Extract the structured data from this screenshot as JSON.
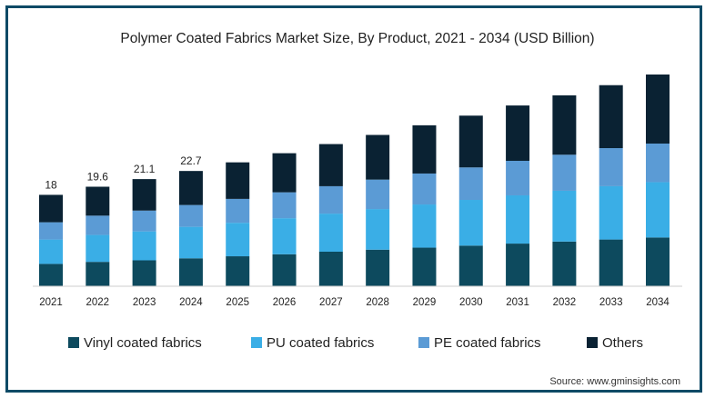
{
  "chart_data": {
    "type": "bar",
    "stacked": true,
    "title": "Polymer Coated Fabrics Market Size, By Product, 2021 - 2034 (USD Billion)",
    "xlabel": "",
    "ylabel": "",
    "grid": false,
    "legend_position": "bottom",
    "categories": [
      "2021",
      "2022",
      "2023",
      "2024",
      "2025",
      "2026",
      "2027",
      "2028",
      "2029",
      "2030",
      "2031",
      "2032",
      "2033",
      "2034"
    ],
    "totals": [
      18,
      19.6,
      21.1,
      22.7,
      24.4,
      26.2,
      28.0,
      29.8,
      31.7,
      33.6,
      35.6,
      37.6,
      39.6,
      41.7
    ],
    "total_labels": [
      "18",
      "19.6",
      "21.1",
      "22.7",
      "",
      "",
      "",
      "",
      "",
      "",
      "",
      "",
      "",
      ""
    ],
    "series": [
      {
        "name": "Vinyl coated fabrics",
        "color": "#0d4a5e",
        "values": [
          4.4,
          4.8,
          5.1,
          5.5,
          5.9,
          6.3,
          6.8,
          7.2,
          7.6,
          8.0,
          8.4,
          8.8,
          9.2,
          9.6
        ]
      },
      {
        "name": "PU coated fabrics",
        "color": "#3aaee6",
        "values": [
          4.8,
          5.3,
          5.7,
          6.2,
          6.6,
          7.1,
          7.5,
          8.0,
          8.5,
          9.0,
          9.5,
          10.0,
          10.5,
          10.9
        ]
      },
      {
        "name": "PE coated fabrics",
        "color": "#5b9bd5",
        "values": [
          3.4,
          3.8,
          4.1,
          4.3,
          4.7,
          5.1,
          5.4,
          5.8,
          6.1,
          6.4,
          6.8,
          7.1,
          7.5,
          7.6
        ]
      },
      {
        "name": "Others",
        "color": "#0a2233",
        "values": [
          5.4,
          5.7,
          6.2,
          6.7,
          7.2,
          7.7,
          8.3,
          8.8,
          9.5,
          10.2,
          10.9,
          11.7,
          12.4,
          13.6
        ]
      }
    ]
  },
  "source": "Source: www.gminsights.com"
}
